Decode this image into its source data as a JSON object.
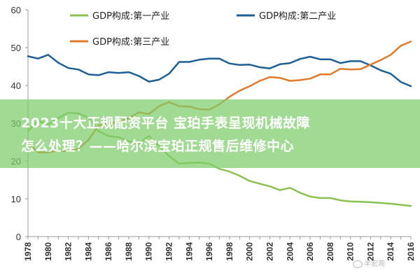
{
  "chart_data": {
    "type": "line",
    "title": "",
    "xlabel": "",
    "ylabel": "",
    "x": [
      1978,
      1979,
      1980,
      1981,
      1982,
      1983,
      1984,
      1985,
      1986,
      1987,
      1988,
      1989,
      1990,
      1991,
      1992,
      1993,
      1994,
      1995,
      1996,
      1997,
      1998,
      1999,
      2000,
      2001,
      2002,
      2003,
      2004,
      2005,
      2006,
      2007,
      2008,
      2009,
      2010,
      2011,
      2012,
      2013,
      2014,
      2015,
      2016
    ],
    "xticks": [
      "1978",
      "1980",
      "1982",
      "1984",
      "1986",
      "1988",
      "1990",
      "1992",
      "1994",
      "1996",
      "1998",
      "2000",
      "2002",
      "2004",
      "2006",
      "2008",
      "2010",
      "2012",
      "2014",
      "2016"
    ],
    "yticks": [
      "0",
      "10",
      "20",
      "30",
      "40",
      "50",
      "60"
    ],
    "ylim": [
      0,
      60
    ],
    "grid": false,
    "legend_position": "top",
    "series": [
      {
        "name": "GDP构成:第一产业",
        "color": "#8cc152",
        "values": [
          27.9,
          30.7,
          29.6,
          31.3,
          32.8,
          32.6,
          31.5,
          27.9,
          26.6,
          26.3,
          25.2,
          24.6,
          26.6,
          24.0,
          21.3,
          19.3,
          19.5,
          19.6,
          19.3,
          17.9,
          17.2,
          16.1,
          14.7,
          14.0,
          13.3,
          12.3,
          12.9,
          11.6,
          10.6,
          10.2,
          10.2,
          9.6,
          9.3,
          9.2,
          9.1,
          8.9,
          8.7,
          8.4,
          8.1
        ]
      },
      {
        "name": "GDP构成:第二产业",
        "color": "#1f5f94",
        "values": [
          47.7,
          47.1,
          48.1,
          46.0,
          44.6,
          44.2,
          42.9,
          42.7,
          43.5,
          43.3,
          43.5,
          42.5,
          41.0,
          41.5,
          43.1,
          46.2,
          46.2,
          46.8,
          47.1,
          47.1,
          45.8,
          45.4,
          45.5,
          44.8,
          44.5,
          45.6,
          45.9,
          47.0,
          47.6,
          46.9,
          46.9,
          45.9,
          46.4,
          46.4,
          45.3,
          44.0,
          43.1,
          40.9,
          39.8
        ]
      },
      {
        "name": "GDP构成:第三产业",
        "color": "#e07b2e",
        "values": [
          24.6,
          22.3,
          22.3,
          22.7,
          22.6,
          23.2,
          25.6,
          29.4,
          29.9,
          30.4,
          31.3,
          32.9,
          32.4,
          34.5,
          35.6,
          34.5,
          34.4,
          33.7,
          33.6,
          35.0,
          37.0,
          38.6,
          39.8,
          41.2,
          42.2,
          42.0,
          41.2,
          41.4,
          41.8,
          42.9,
          42.9,
          44.4,
          44.2,
          44.3,
          45.5,
          46.7,
          48.1,
          50.5,
          51.6
        ]
      }
    ]
  },
  "overlay": {
    "line1": "2023十大正规配资平台 宝珀手表呈现机械故障",
    "line2": "怎么处理？——哈尔滨宝珀正规售后维修中心"
  },
  "watermark": {
    "text": "半宏观"
  }
}
